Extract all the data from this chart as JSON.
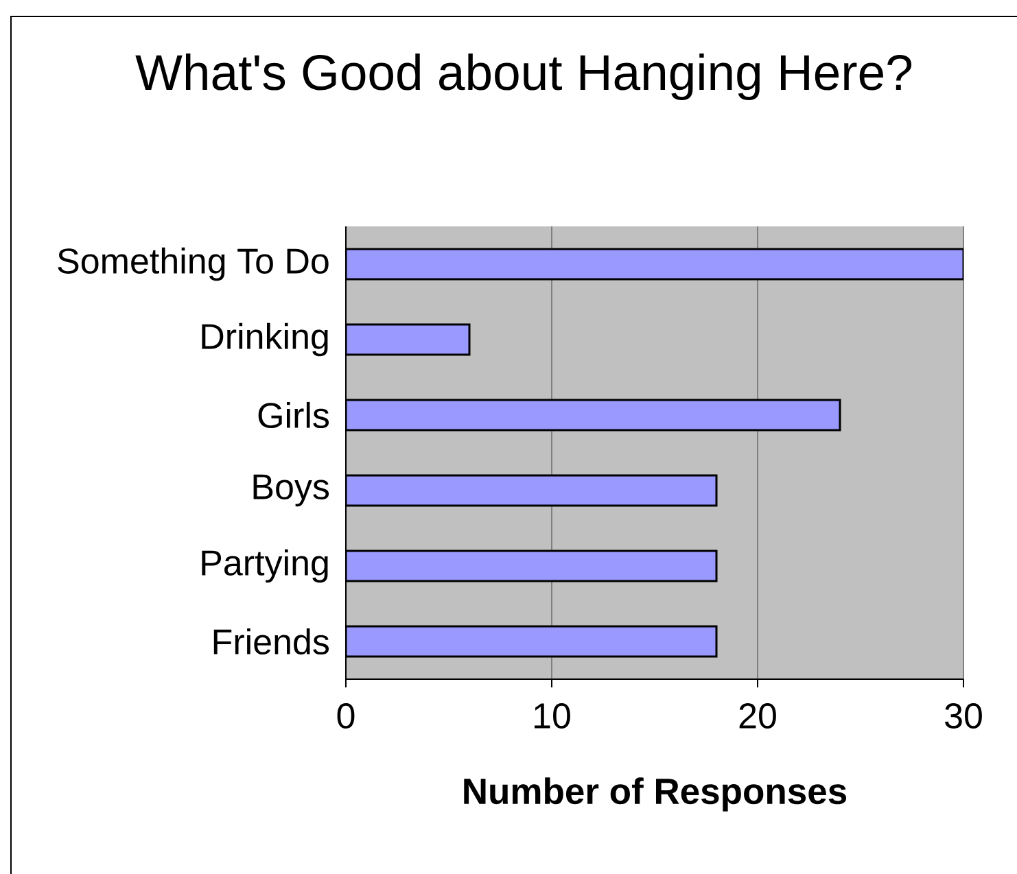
{
  "chart_data": {
    "type": "bar",
    "orientation": "horizontal",
    "title": "What's Good about Hanging Here?",
    "xlabel": "Number of Responses",
    "categories": [
      "Something To Do",
      "Drinking",
      "Girls",
      "Boys",
      "Partying",
      "Friends"
    ],
    "values": [
      30,
      6,
      24,
      18,
      18,
      18
    ],
    "color": "#9999ff",
    "xlim": [
      0,
      30
    ],
    "xticks": [
      0,
      10,
      20,
      30
    ],
    "grid": "x"
  }
}
